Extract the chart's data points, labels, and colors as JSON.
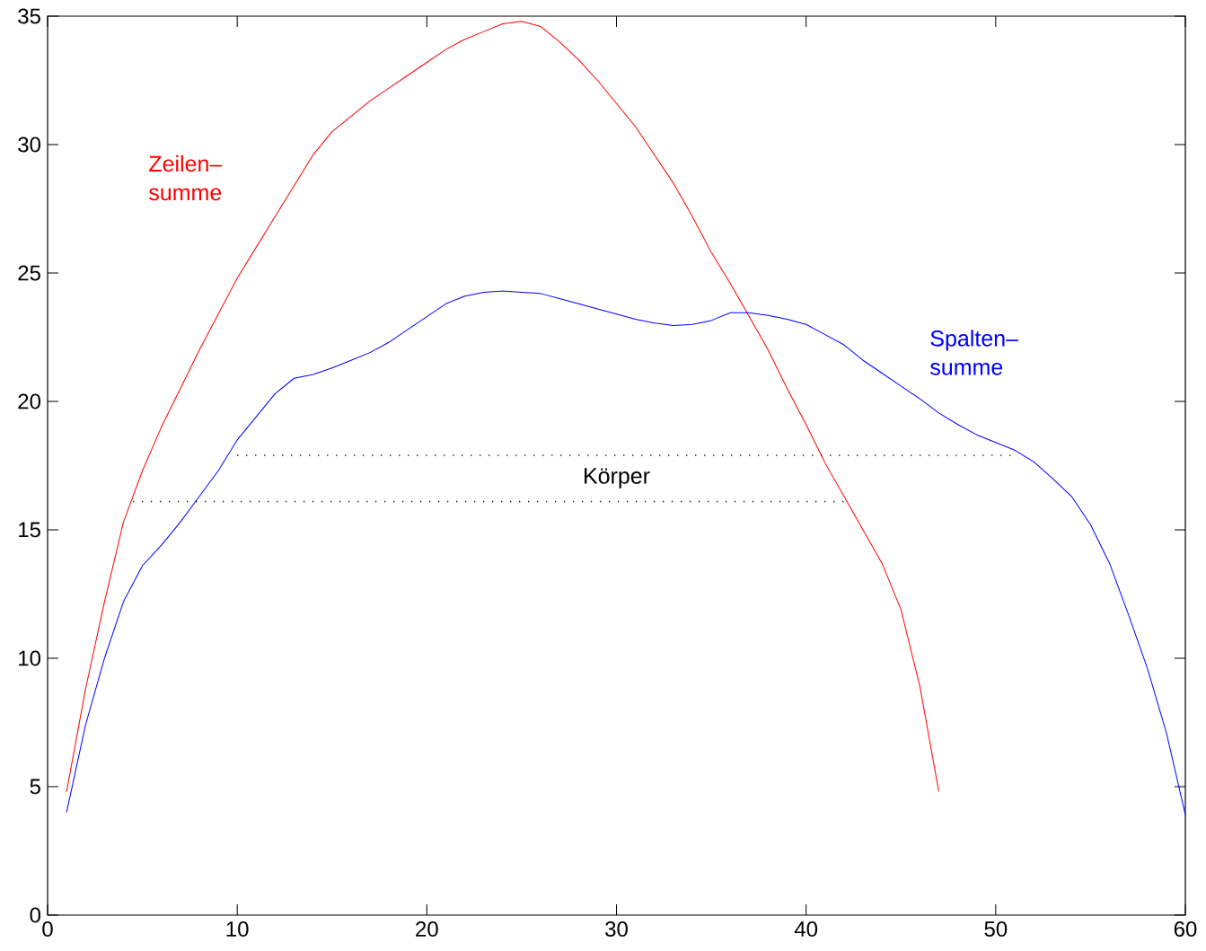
{
  "chart_data": {
    "type": "line",
    "xlim": [
      0,
      60
    ],
    "ylim": [
      0,
      35
    ],
    "xticks": [
      0,
      10,
      20,
      30,
      40,
      50,
      60
    ],
    "yticks": [
      0,
      5,
      10,
      15,
      20,
      25,
      30,
      35
    ],
    "grid": false,
    "legend": false,
    "marker": "none",
    "series": [
      {
        "name": "Zeilen– summe",
        "color": "#ff0000",
        "line_style": "solid",
        "x": [
          1,
          2,
          3,
          4,
          5,
          6,
          7,
          8,
          9,
          10,
          11,
          12,
          13,
          14,
          15,
          16,
          17,
          18,
          19,
          20,
          21,
          22,
          23,
          24,
          25,
          26,
          27,
          28,
          29,
          30,
          31,
          32,
          33,
          34,
          35,
          36,
          37,
          38,
          39,
          40,
          41,
          42,
          43,
          44,
          45,
          46,
          47
        ],
        "values": [
          4.8,
          8.8,
          12.2,
          15.3,
          17.3,
          19.0,
          20.5,
          22.0,
          23.4,
          24.8,
          26.0,
          27.2,
          28.4,
          29.6,
          30.5,
          31.1,
          31.7,
          32.2,
          32.7,
          33.2,
          33.7,
          34.1,
          34.4,
          34.7,
          34.8,
          34.6,
          34.0,
          33.3,
          32.5,
          31.6,
          30.7,
          29.6,
          28.5,
          27.2,
          25.8,
          24.6,
          23.3,
          22.0,
          20.5,
          19.1,
          17.6,
          16.3,
          15.0,
          13.7,
          11.9,
          8.9,
          4.8
        ]
      },
      {
        "name": "Spalten– summe",
        "color": "#0000ff",
        "line_style": "solid",
        "x": [
          1,
          2,
          3,
          4,
          5,
          6,
          7,
          8,
          9,
          10,
          11,
          12,
          13,
          14,
          15,
          16,
          17,
          18,
          19,
          20,
          21,
          22,
          23,
          24,
          25,
          26,
          27,
          28,
          29,
          30,
          31,
          32,
          33,
          34,
          35,
          36,
          37,
          38,
          39,
          40,
          41,
          42,
          43,
          44,
          45,
          46,
          47,
          48,
          49,
          50,
          51,
          52,
          53,
          54,
          55,
          56,
          57,
          58,
          59,
          60
        ],
        "values": [
          4.0,
          7.4,
          10.0,
          12.2,
          13.6,
          14.4,
          15.3,
          16.3,
          17.3,
          18.5,
          19.4,
          20.3,
          20.9,
          21.05,
          21.3,
          21.6,
          21.9,
          22.3,
          22.8,
          23.3,
          23.8,
          24.1,
          24.25,
          24.3,
          24.25,
          24.2,
          24.0,
          23.8,
          23.6,
          23.4,
          23.2,
          23.05,
          22.95,
          23.0,
          23.15,
          23.45,
          23.45,
          23.35,
          23.2,
          23.0,
          22.6,
          22.2,
          21.6,
          21.1,
          20.6,
          20.1,
          19.55,
          19.1,
          18.7,
          18.4,
          18.1,
          17.65,
          17.0,
          16.3,
          15.2,
          13.7,
          11.7,
          9.6,
          7.1,
          3.9
        ]
      },
      {
        "color": "#000000",
        "line_style": "dotted",
        "x": [
          10,
          51
        ],
        "values": [
          17.9,
          17.9
        ]
      },
      {
        "color": "#000000",
        "line_style": "dotted",
        "x": [
          4.5,
          42
        ],
        "values": [
          16.1,
          16.1
        ]
      }
    ],
    "annotations": [
      "Körper"
    ]
  }
}
